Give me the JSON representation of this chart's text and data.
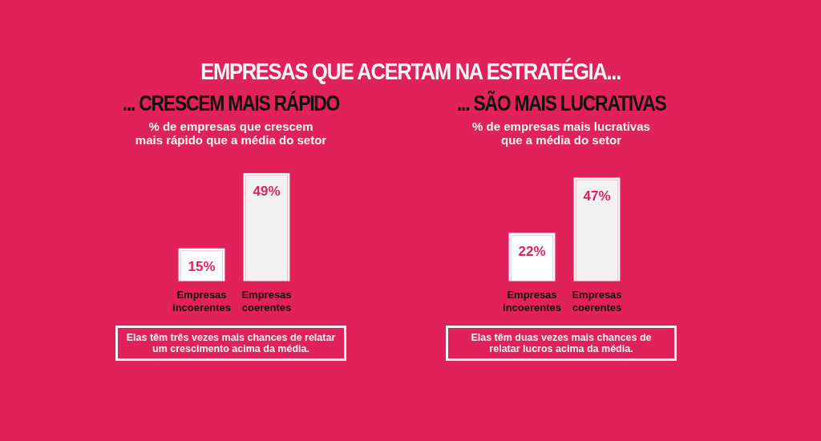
{
  "chart_data": [
    {
      "type": "other",
      "title": "EMPRESAS QUE ACERTAM NA ESTRATÉGIA..."
    },
    {
      "type": "bar",
      "title": "... CRESCEM MAIS RÁPIDO",
      "subtitle": "% de empresas que crescem mais rápido que a média do setor",
      "categories": [
        "Empresas incoerentes",
        "Empresas coerentes"
      ],
      "values": [
        15,
        49
      ],
      "colors": [
        "#ffffff",
        "#f2f2f2"
      ],
      "value_labels": [
        "15%",
        "49%"
      ],
      "annotations": [
        "Elas têm três vezes mais chances de relatar um crescimento acima da média."
      ]
    },
    {
      "type": "bar",
      "title": "... SÃO MAIS LUCRATIVAS",
      "subtitle": "% de empresas mais lucrativas que a média do setor",
      "categories": [
        "Empresas incoerentes",
        "Empresas coerentes"
      ],
      "values": [
        22,
        47
      ],
      "colors": [
        "#ffffff",
        "#f2f2f2"
      ],
      "value_labels": [
        "22%",
        "47%"
      ],
      "annotations": [
        "Elas têm duas vezes mais chances de relatar lucros acima da média."
      ]
    }
  ]
}
